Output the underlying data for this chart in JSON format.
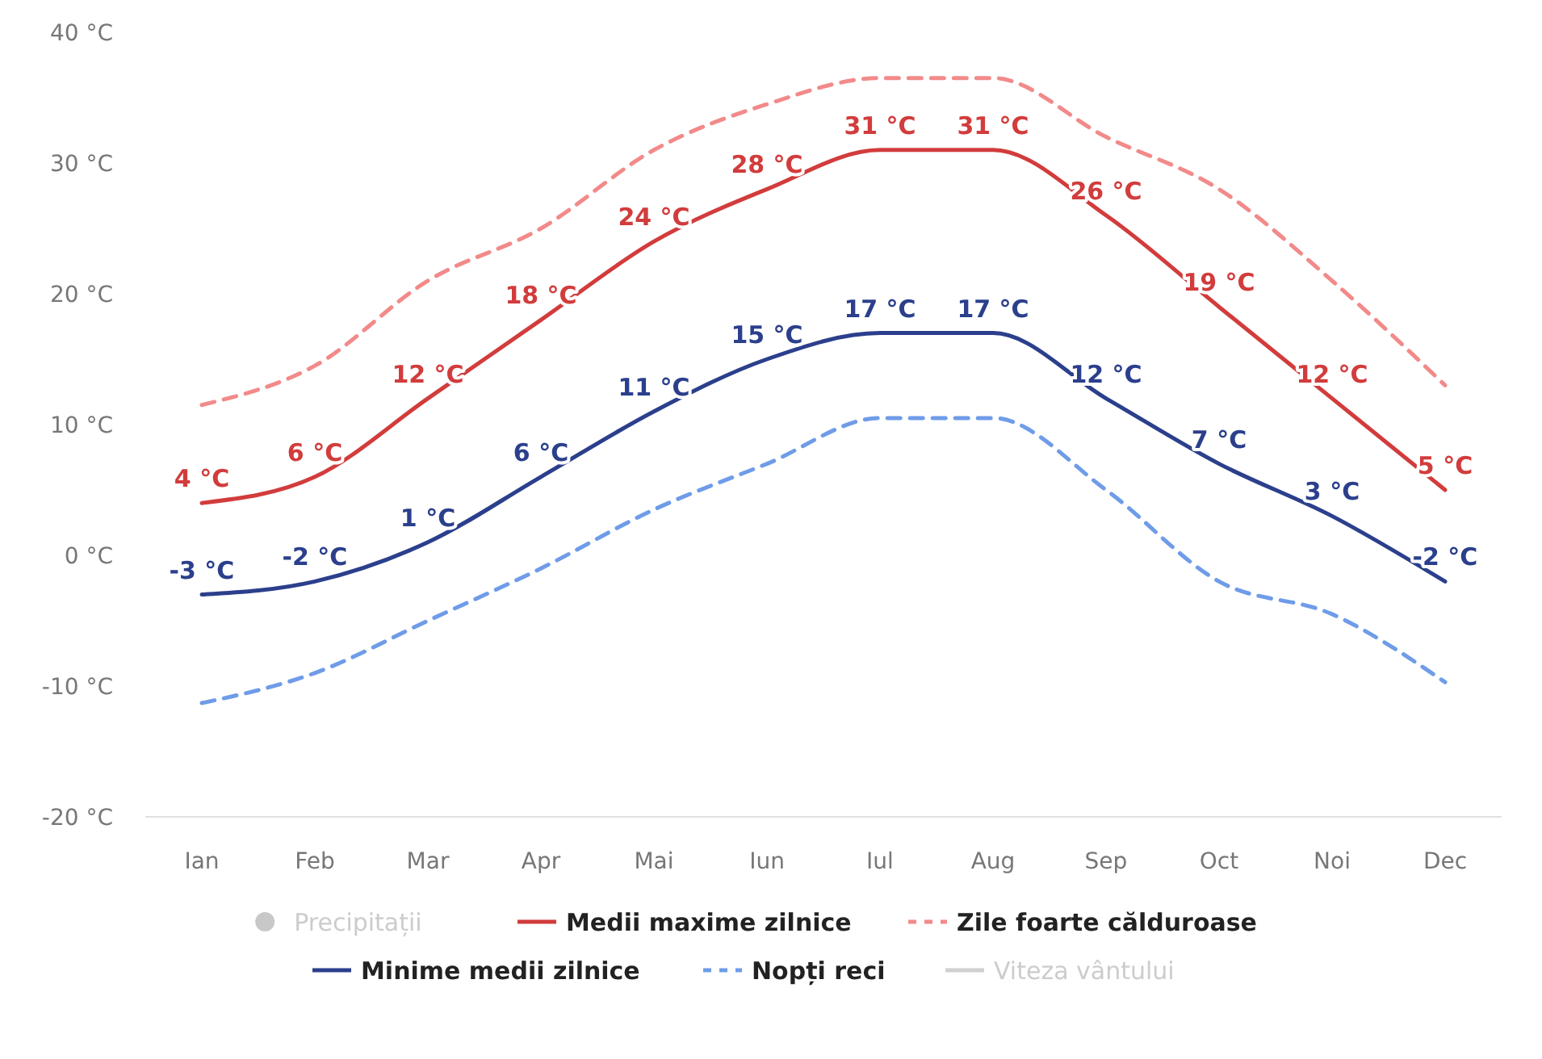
{
  "chart_data": {
    "type": "line",
    "categories": [
      "Ian",
      "Feb",
      "Mar",
      "Apr",
      "Mai",
      "Iun",
      "Iul",
      "Aug",
      "Sep",
      "Oct",
      "Noi",
      "Dec"
    ],
    "ylim": [
      -20,
      40
    ],
    "yticks": [
      {
        "value": -20,
        "label": "-20 °C"
      },
      {
        "value": -10,
        "label": "-10 °C"
      },
      {
        "value": 0,
        "label": "0 °C"
      },
      {
        "value": 10,
        "label": "10 °C"
      },
      {
        "value": 20,
        "label": "20 °C"
      },
      {
        "value": 30,
        "label": "30 °C"
      },
      {
        "value": 40,
        "label": "40 °C"
      }
    ],
    "grid": false,
    "legend": "bottom",
    "series": [
      {
        "name": "Precipitații",
        "type": "bar",
        "color": "#c8c8c8",
        "values": [
          null,
          null,
          null,
          null,
          null,
          null,
          null,
          null,
          null,
          null,
          null,
          null
        ]
      },
      {
        "name": "Medii maxime zilnice",
        "color": "#d23c3c",
        "line_style": "solid",
        "values": [
          4,
          6,
          12,
          18,
          24,
          28,
          31,
          31,
          26,
          19,
          12,
          5
        ],
        "value_labels": [
          "4 °C",
          "6 °C",
          "12 °C",
          "18 °C",
          "24 °C",
          "28 °C",
          "31 °C",
          "31 °C",
          "26 °C",
          "19 °C",
          "12 °C",
          "5 °C"
        ]
      },
      {
        "name": "Zile foarte călduroase",
        "color": "#f28a8a",
        "line_style": "dashed",
        "values": [
          11.5,
          14.5,
          21,
          25,
          31,
          34.5,
          36.5,
          36.5,
          32,
          28,
          21,
          13
        ]
      },
      {
        "name": "Minime medii zilnice",
        "color": "#2b3f8c",
        "line_style": "solid",
        "values": [
          -3,
          -2,
          1,
          6,
          11,
          15,
          17,
          17,
          12,
          7,
          3,
          -2
        ],
        "value_labels": [
          "-3 °C",
          "-2 °C",
          "1 °C",
          "6 °C",
          "11 °C",
          "15 °C",
          "17 °C",
          "17 °C",
          "12 °C",
          "7 °C",
          "3 °C",
          "-2 °C"
        ]
      },
      {
        "name": "Nopți reci",
        "color": "#6f9ce8",
        "line_style": "dashed",
        "values": [
          -11.3,
          -9,
          -5,
          -1,
          3.5,
          7,
          10.5,
          10.5,
          5,
          -2,
          -4.5,
          -9.7
        ]
      },
      {
        "name": "Viteza vântului",
        "color": "#d0d0d0",
        "line_style": "solid",
        "values": [
          null,
          null,
          null,
          null,
          null,
          null,
          null,
          null,
          null,
          null,
          null,
          null
        ]
      }
    ]
  }
}
